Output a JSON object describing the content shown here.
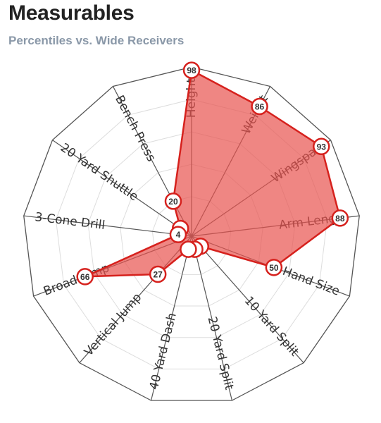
{
  "header": {
    "title": "Measurables",
    "subtitle": "Percentiles vs. Wide Receivers"
  },
  "colors": {
    "fill": "#e8524e",
    "stroke": "#d6211d",
    "grid": "#dddddd",
    "outline": "#555555"
  },
  "chart_data": {
    "type": "radar",
    "title": "Measurables",
    "subtitle": "Percentiles vs. Wide Receivers",
    "range": [
      0,
      100
    ],
    "categories": [
      "Height",
      "Weight",
      "Wingspan",
      "Arm Length",
      "Hand Size",
      "10 Yard Split",
      "20 Yard Split",
      "40 Yard Dash",
      "Vertical Jump",
      "Broad Jump",
      "3-Cone Drill",
      "20 Yard Shuttle",
      "Bench Press"
    ],
    "values": [
      98,
      86,
      93,
      88,
      50,
      4,
      4,
      4,
      27,
      66,
      4,
      4,
      20
    ],
    "labeled_values": [
      "98",
      "86",
      "93",
      "88",
      "50",
      "",
      "",
      "",
      "27",
      "66",
      "4",
      "",
      "20"
    ]
  }
}
